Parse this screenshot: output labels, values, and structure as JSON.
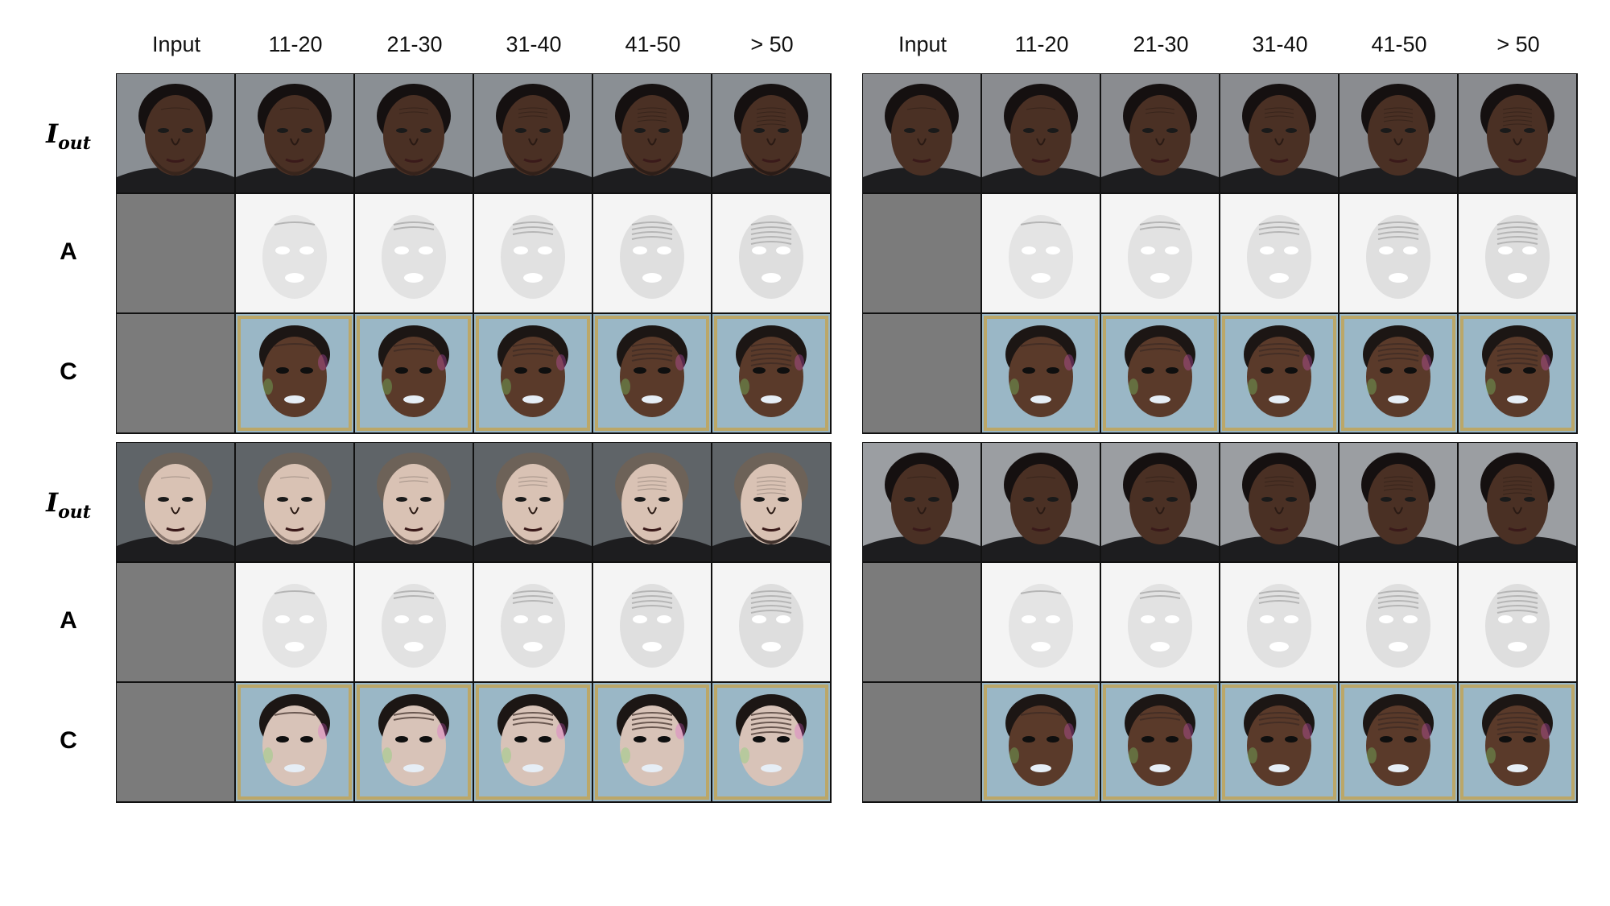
{
  "figure": {
    "column_headers": [
      "Input",
      "11-20",
      "21-30",
      "31-40",
      "41-50",
      "> 50"
    ],
    "row_labels": {
      "output": {
        "main": "I",
        "sub": "out"
      },
      "attention": "A",
      "color": "C"
    },
    "panels": [
      {
        "id": "top-left",
        "skin": "dark",
        "background": "#8a8f94",
        "beard": true
      },
      {
        "id": "top-right",
        "skin": "dark",
        "background": "#8a8c90",
        "beard": false
      },
      {
        "id": "bottom-left",
        "skin": "light",
        "background": "#5f6468",
        "beard": true
      },
      {
        "id": "bottom-right",
        "skin": "dark",
        "background": "#9b9ea2",
        "beard": false
      }
    ],
    "colors": {
      "blank_cell": "#7b7b7b",
      "attention_bg": "#f3f3f3",
      "dark_skin": "#4a3024",
      "light_skin": "#d9c2b4",
      "hair": "#151010"
    }
  }
}
